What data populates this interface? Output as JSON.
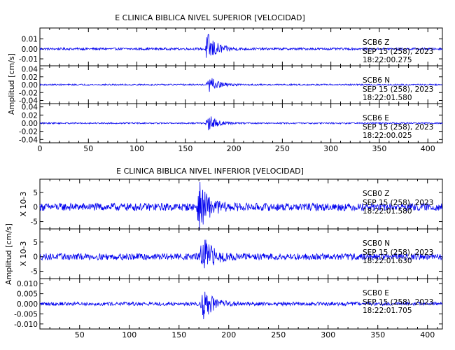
{
  "chart_data": [
    {
      "type": "line",
      "title": "E  CLINICA  BIBLICA  NIVEL  SUPERIOR  [VELOCIDAD]",
      "ylabel": "Amplitud  [cm/s]",
      "xlim": [
        0,
        415
      ],
      "xticks": [
        0,
        50,
        100,
        150,
        200,
        250,
        300,
        350,
        400
      ],
      "show_xtick_labels": true,
      "subplots": [
        {
          "ylim": [
            -0.017,
            0.021
          ],
          "yticks": [
            0.01,
            0.0,
            -0.01
          ],
          "ytick_labels": [
            "0.01",
            "0.00",
            "-0.01"
          ],
          "scale_label": "",
          "station": "SCB6    Z",
          "date": "SEP  15  (258),  2023",
          "time": "18:22:00.275",
          "noise_amp": 0.0011,
          "event_amp": 0.016,
          "event_t": 171
        },
        {
          "ylim": [
            -0.048,
            0.048
          ],
          "yticks": [
            0.04,
            0.02,
            0.0,
            -0.02,
            -0.04
          ],
          "ytick_labels": [
            "0.04",
            "0.02",
            "0.00",
            "-0.02",
            "-0.04"
          ],
          "scale_label": "",
          "station": "SCB6    N",
          "date": "SEP  15  (258),  2023",
          "time": "18:22:01.580",
          "noise_amp": 0.0018,
          "event_amp": 0.02,
          "event_t": 173
        },
        {
          "ylim": [
            -0.048,
            0.048
          ],
          "yticks": [
            0.04,
            0.02,
            0.0,
            -0.02,
            -0.04
          ],
          "ytick_labels": [
            "0.04",
            "0.02",
            "0.00",
            "-0.02",
            "-0.04"
          ],
          "scale_label": "",
          "station": "SCB6    E",
          "date": "SEP  15  (258),  2023",
          "time": "18:22:00.025",
          "noise_amp": 0.0018,
          "event_amp": 0.02,
          "event_t": 172
        }
      ]
    },
    {
      "type": "line",
      "title": "E  CLINICA  BIBLICA  NIVEL  INFERIOR  [VELOCIDAD]",
      "ylabel": "Amplitud  [cm/s]",
      "xlim": [
        10,
        415
      ],
      "xticks": [
        50,
        100,
        150,
        200,
        250,
        300,
        350,
        400
      ],
      "show_xtick_labels": true,
      "subplots": [
        {
          "ylim": [
            -7.5,
            9.5
          ],
          "yticks": [
            5,
            0,
            -5
          ],
          "ytick_labels": [
            "5",
            "0",
            "-5"
          ],
          "scale_label": "X  10-3",
          "station": "SCB0    Z",
          "date": "SEP  15  (258),  2023",
          "time": "18:22:01.580",
          "noise_amp": 1.3,
          "event_amp": 7.5,
          "event_t": 169
        },
        {
          "ylim": [
            -7.5,
            9.5
          ],
          "yticks": [
            5,
            0,
            -5
          ],
          "ytick_labels": [
            "5",
            "0",
            "-5"
          ],
          "scale_label": "X  10-3",
          "station": "SCB0    N",
          "date": "SEP  15  (258),  2023",
          "time": "18:22:01.630",
          "noise_amp": 1.1,
          "event_amp": 7.0,
          "event_t": 172
        },
        {
          "ylim": [
            -0.0125,
            0.0125
          ],
          "yticks": [
            0.01,
            0.005,
            0.0,
            -0.005,
            -0.01
          ],
          "ytick_labels": [
            "0.010",
            "0.005",
            "0.000",
            "-0.005",
            "-0.010"
          ],
          "scale_label": "",
          "station": "SCB0    E",
          "date": "SEP  15  (258),  2023",
          "time": "18:22:01.705",
          "noise_amp": 0.0009,
          "event_amp": 0.0075,
          "event_t": 173
        }
      ]
    }
  ],
  "colors": {
    "trace": "#0000ee",
    "axes": "#000000"
  }
}
